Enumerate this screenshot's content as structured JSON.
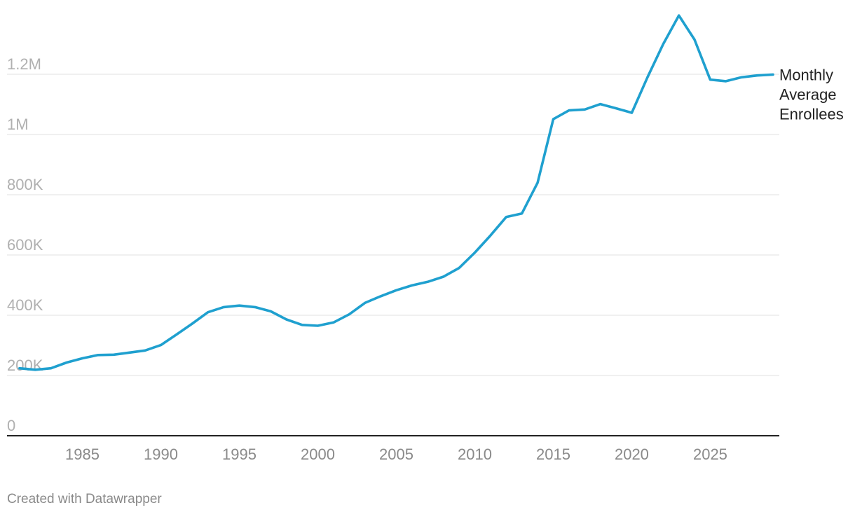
{
  "colors": {
    "line": "#1fa0cf",
    "grid": "#e0e0e0",
    "axis": "#222222"
  },
  "chart_data": {
    "type": "line",
    "title": "",
    "xlabel": "",
    "ylabel": "",
    "x_ticks": [
      1985,
      1990,
      1995,
      2000,
      2005,
      2010,
      2015,
      2020,
      2025
    ],
    "y_ticks": [
      {
        "value": 0,
        "label": "0"
      },
      {
        "value": 200000,
        "label": "200K"
      },
      {
        "value": 400000,
        "label": "400K"
      },
      {
        "value": 600000,
        "label": "600K"
      },
      {
        "value": 800000,
        "label": "800K"
      },
      {
        "value": 1000000,
        "label": "1M"
      },
      {
        "value": 1200000,
        "label": "1.2M"
      }
    ],
    "xlim": [
      1980.2,
      2029.4
    ],
    "ylim": [
      0,
      1400000
    ],
    "grid": true,
    "series": [
      {
        "name": "Monthly Average Enrollees",
        "label_lines": [
          "Monthly",
          "Average",
          "Enrollees"
        ],
        "x": [
          1981,
          1982,
          1983,
          1984,
          1985,
          1986,
          1987,
          1988,
          1989,
          1990,
          1991,
          1992,
          1993,
          1994,
          1995,
          1996,
          1997,
          1998,
          1999,
          2000,
          2001,
          2002,
          2003,
          2004,
          2005,
          2006,
          2007,
          2008,
          2009,
          2010,
          2011,
          2012,
          2013,
          2014,
          2015,
          2016,
          2017,
          2018,
          2019,
          2020,
          2021,
          2022,
          2023,
          2024,
          2025,
          2026,
          2027,
          2028,
          2029
        ],
        "values": [
          224000,
          219000,
          224000,
          243000,
          257000,
          268000,
          269000,
          276000,
          283000,
          301000,
          336000,
          372000,
          410000,
          427000,
          432000,
          427000,
          413000,
          386000,
          368000,
          365000,
          376000,
          403000,
          441000,
          463000,
          483000,
          499000,
          511000,
          528000,
          557000,
          608000,
          665000,
          726000,
          738000,
          840000,
          1051000,
          1080000,
          1083000,
          1101000,
          1087000,
          1072000,
          1190000,
          1300000,
          1395000,
          1315000,
          1182000,
          1177000,
          1190000,
          1196000,
          1199000
        ]
      }
    ]
  },
  "footer": {
    "credit": "Created with Datawrapper"
  }
}
